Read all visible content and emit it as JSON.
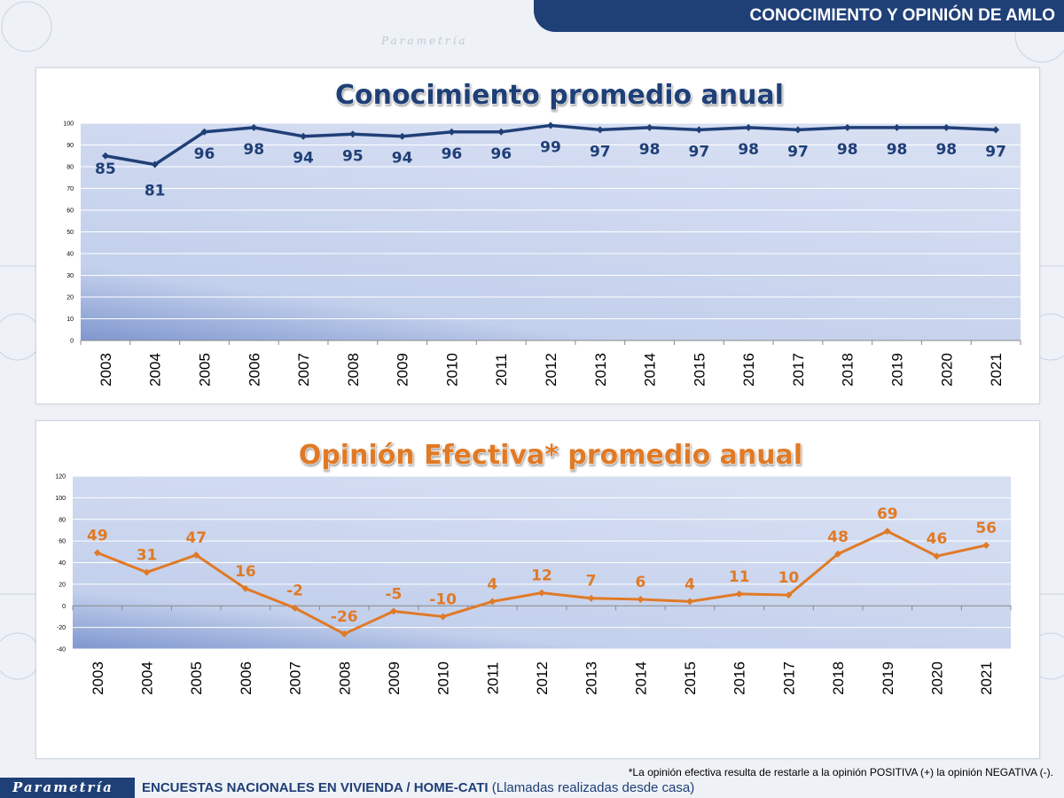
{
  "header": {
    "title": "CONOCIMIENTO Y OPINIÓN DE AMLO"
  },
  "background": {
    "watermark_text": "Parametría"
  },
  "chart_data": [
    {
      "type": "line",
      "title": "Conocimiento promedio anual",
      "color": "#1f3f77",
      "categories": [
        "2003",
        "2004",
        "2005",
        "2006",
        "2007",
        "2008",
        "2009",
        "2010",
        "2011",
        "2012",
        "2013",
        "2014",
        "2015",
        "2016",
        "2017",
        "2018",
        "2019",
        "2020",
        "2021"
      ],
      "values": [
        85,
        81,
        96,
        98,
        94,
        95,
        94,
        96,
        96,
        99,
        97,
        98,
        97,
        98,
        97,
        98,
        98,
        98,
        97
      ],
      "ylim": [
        0,
        100
      ],
      "yticks": [
        0,
        10,
        20,
        30,
        40,
        50,
        60,
        70,
        80,
        90,
        100
      ],
      "grid": true
    },
    {
      "type": "line",
      "title": "Opinión Efectiva* promedio anual",
      "color": "#e07a26",
      "categories": [
        "2003",
        "2004",
        "2005",
        "2006",
        "2007",
        "2008",
        "2009",
        "2010",
        "2011",
        "2012",
        "2013",
        "2014",
        "2015",
        "2016",
        "2017",
        "2018",
        "2019",
        "2020",
        "2021"
      ],
      "values": [
        49,
        31,
        47,
        16,
        -2,
        -26,
        -5,
        -10,
        4,
        12,
        7,
        6,
        4,
        11,
        10,
        48,
        69,
        46,
        56
      ],
      "ylim": [
        -40,
        120
      ],
      "yticks": [
        -40,
        -20,
        0,
        20,
        40,
        60,
        80,
        100,
        120
      ],
      "grid": true
    }
  ],
  "footnote": "*La opinión efectiva resulta de restarle a la opinión POSITIVA (+) la opinión NEGATIVA (-).",
  "footer": {
    "logo": "Parametría",
    "text_bold": "ENCUESTAS NACIONALES EN VIVIENDA / HOME-CATI",
    "text_regular": "(Llamadas realizadas desde casa)"
  }
}
